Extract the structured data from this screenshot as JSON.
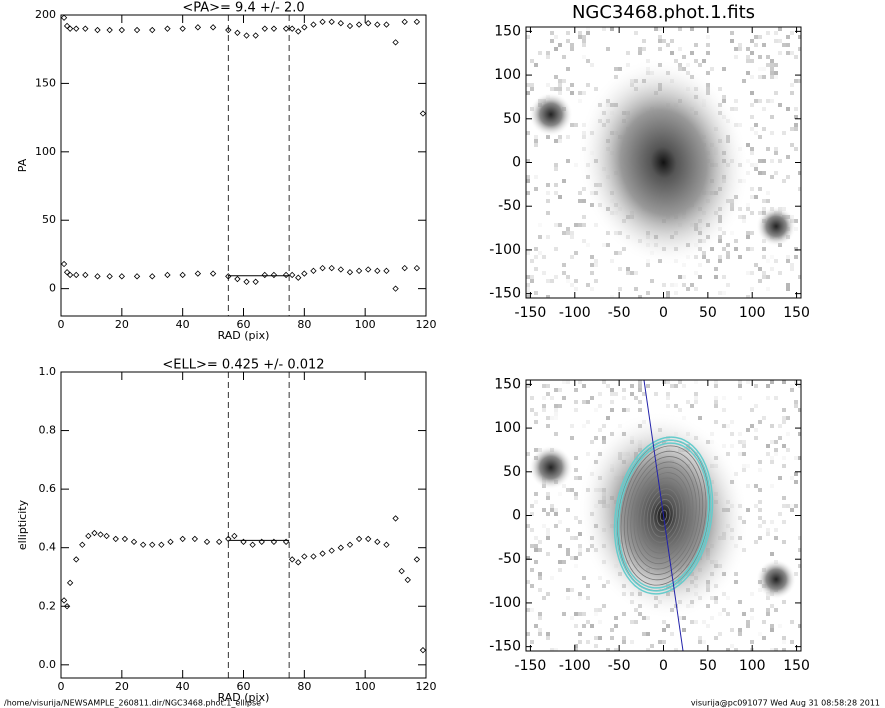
{
  "chart_data": [
    {
      "type": "scatter",
      "title": "<PA>=  9.4 +/-   2.0",
      "x_label": "RAD (pix)",
      "y_label": "PA",
      "xlim": [
        0,
        120
      ],
      "ylim": [
        -20,
        200
      ],
      "xticks": [
        0,
        20,
        40,
        60,
        80,
        100,
        120
      ],
      "yticks": [
        0,
        50,
        100,
        150,
        200
      ],
      "vlines": [
        55,
        75
      ],
      "fit_line": {
        "x": [
          55,
          75
        ],
        "y": 9.4
      },
      "x": [
        1,
        2,
        3,
        5,
        8,
        12,
        16,
        20,
        25,
        30,
        35,
        40,
        45,
        50,
        55,
        58,
        61,
        64,
        67,
        70,
        74,
        76,
        78,
        80,
        83,
        86,
        89,
        92,
        95,
        98,
        101,
        104,
        107,
        110,
        113,
        117,
        119
      ],
      "series": [
        {
          "name": "PA",
          "color": "#000000",
          "values": [
            18,
            12,
            10,
            10,
            10,
            9,
            9,
            9,
            9,
            9,
            10,
            10,
            11,
            11,
            9,
            7,
            5,
            5,
            10,
            10,
            10,
            10,
            8,
            11,
            13,
            15,
            15,
            14,
            12,
            13,
            14,
            13,
            13,
            0,
            15,
            15,
            null
          ]
        },
        {
          "name": "PA+180",
          "color": "#000000",
          "values": [
            198,
            192,
            190,
            190,
            190,
            189,
            189,
            189,
            189,
            189,
            190,
            190,
            191,
            191,
            189,
            187,
            185,
            185,
            190,
            190,
            190,
            190,
            188,
            191,
            193,
            195,
            195,
            194,
            192,
            193,
            194,
            193,
            193,
            180,
            195,
            195,
            128
          ]
        }
      ]
    },
    {
      "type": "scatter",
      "title": "<ELL>= 0.425 +/-  0.012",
      "x_label": "RAD (pix)",
      "y_label": "ellipticity",
      "xlim": [
        0,
        120
      ],
      "ylim": [
        -0.045,
        1.0
      ],
      "xticks": [
        0,
        20,
        40,
        60,
        80,
        100,
        120
      ],
      "yticks": [
        {
          "value": 0,
          "label": "0.0"
        },
        {
          "value": 0.2,
          "label": "0.2"
        },
        {
          "value": 0.4,
          "label": "0.4"
        },
        {
          "value": 0.6,
          "label": "0.6"
        },
        {
          "value": 0.8,
          "label": "0.8"
        },
        {
          "value": 1,
          "label": "1.0"
        }
      ],
      "vlines": [
        55,
        75
      ],
      "fit_line": {
        "x": [
          55,
          75
        ],
        "y": 0.425
      },
      "x": [
        1,
        2,
        3,
        5,
        7,
        9,
        11,
        13,
        15,
        18,
        21,
        24,
        27,
        30,
        33,
        36,
        40,
        44,
        48,
        52,
        55,
        57,
        60,
        63,
        66,
        70,
        74,
        76,
        78,
        80,
        83,
        86,
        89,
        92,
        95,
        98,
        101,
        104,
        107,
        110,
        112,
        114,
        117,
        119
      ],
      "series": [
        {
          "name": "ellipticity",
          "color": "#000000",
          "values": [
            0.22,
            0.2,
            0.28,
            0.36,
            0.41,
            0.44,
            0.45,
            0.445,
            0.44,
            0.43,
            0.43,
            0.42,
            0.41,
            0.41,
            0.41,
            0.42,
            0.43,
            0.43,
            0.42,
            0.42,
            0.43,
            0.44,
            0.42,
            0.41,
            0.42,
            0.42,
            0.42,
            0.36,
            0.35,
            0.37,
            0.37,
            0.38,
            0.39,
            0.4,
            0.41,
            0.43,
            0.43,
            0.42,
            0.41,
            0.5,
            0.32,
            0.29,
            0.36,
            0.05
          ]
        }
      ]
    },
    {
      "type": "image",
      "title": "NGC3468.phot.1.fits",
      "xlim": [
        -155,
        155
      ],
      "ylim": [
        -155,
        155
      ],
      "xticks": [
        -150,
        -100,
        -50,
        0,
        50,
        100,
        150
      ],
      "yticks": [
        -150,
        -100,
        -50,
        0,
        50,
        100,
        150
      ]
    },
    {
      "type": "image",
      "contours": true,
      "xlim": [
        -155,
        155
      ],
      "ylim": [
        -155,
        155
      ],
      "xticks": [
        -150,
        -100,
        -50,
        0,
        50,
        100,
        150
      ],
      "yticks": [
        -150,
        -100,
        -50,
        0,
        50,
        100,
        150
      ]
    }
  ],
  "footer": {
    "left": "/home/visurija/NEWSAMPLE_260811.dir/NGC3468.phot.1_ellipse",
    "right": "visurija@pc091077  Wed Aug 31 08:58:28 2011"
  }
}
